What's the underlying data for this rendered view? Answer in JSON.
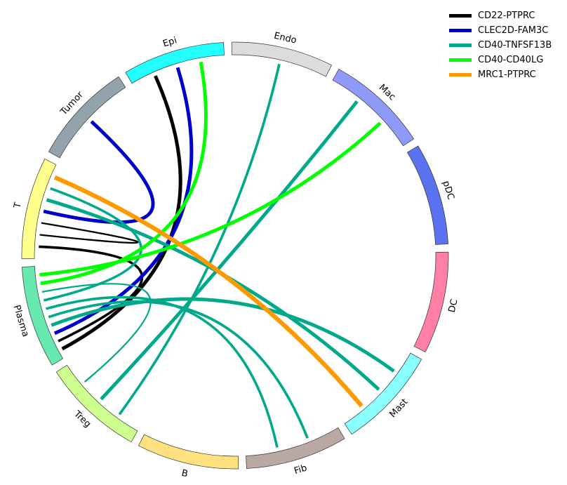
{
  "chart_data": {
    "type": "chord",
    "sectors": [
      {
        "name": "Endo",
        "color": "#dcdcdc"
      },
      {
        "name": "Mac",
        "color": "#8f99f7"
      },
      {
        "name": "pDC",
        "color": "#5a71f0"
      },
      {
        "name": "DC",
        "color": "#ff7fa5"
      },
      {
        "name": "Mast",
        "color": "#89ffff"
      },
      {
        "name": "Fib",
        "color": "#baa8a3"
      },
      {
        "name": "B",
        "color": "#ffe17f"
      },
      {
        "name": "Treg",
        "color": "#ccff8e"
      },
      {
        "name": "Plasma",
        "color": "#66e8af"
      },
      {
        "name": "T",
        "color": "#ffff8c"
      },
      {
        "name": "Tumor",
        "color": "#92a3ab"
      },
      {
        "name": "Epi",
        "color": "#22ffff"
      }
    ],
    "legend": [
      {
        "name": "CD22-PTPRC",
        "color": "#000000"
      },
      {
        "name": "CLEC2D-FAM3C",
        "color": "#0000cc"
      },
      {
        "name": "CD40-TNFSF13B",
        "color": "#00a98a"
      },
      {
        "name": "CD40-CD40LG",
        "color": "#00ff00"
      },
      {
        "name": "MRC1-PTPRC",
        "color": "#ff9900"
      }
    ],
    "links": [
      {
        "source": "Epi",
        "target": "Plasma",
        "pair": "CD22-PTPRC",
        "weight": 3
      },
      {
        "source": "T",
        "target": "Plasma",
        "pair": "CD22-PTPRC",
        "weight": 2
      },
      {
        "source": "T",
        "target": "T",
        "pair": "CD22-PTPRC",
        "weight": 1
      },
      {
        "source": "Tumor",
        "target": "T",
        "pair": "CLEC2D-FAM3C",
        "weight": 3
      },
      {
        "source": "Epi",
        "target": "Plasma",
        "pair": "CLEC2D-FAM3C",
        "weight": 3
      },
      {
        "source": "Endo",
        "target": "Treg",
        "pair": "CD40-TNFSF13B",
        "weight": 2
      },
      {
        "source": "Mac",
        "target": "Treg",
        "pair": "CD40-TNFSF13B",
        "weight": 3
      },
      {
        "source": "Mast",
        "target": "Plasma",
        "pair": "CD40-TNFSF13B",
        "weight": 3
      },
      {
        "source": "Mast",
        "target": "T",
        "pair": "CD40-TNFSF13B",
        "weight": 3
      },
      {
        "source": "Fib",
        "target": "Plasma",
        "pair": "CD40-TNFSF13B",
        "weight": 2
      },
      {
        "source": "Fib",
        "target": "Plasma",
        "pair": "CD40-TNFSF13B",
        "weight": 2
      },
      {
        "source": "T",
        "target": "Plasma",
        "pair": "CD40-TNFSF13B",
        "weight": 2
      },
      {
        "source": "Plasma",
        "target": "Treg",
        "pair": "CD40-TNFSF13B",
        "weight": 1
      },
      {
        "source": "Epi",
        "target": "Plasma",
        "pair": "CD40-CD40LG",
        "weight": 3
      },
      {
        "source": "Mac",
        "target": "Plasma",
        "pair": "CD40-CD40LG",
        "weight": 3
      },
      {
        "source": "T",
        "target": "Mast",
        "pair": "MRC1-PTPRC",
        "weight": 4
      }
    ]
  }
}
